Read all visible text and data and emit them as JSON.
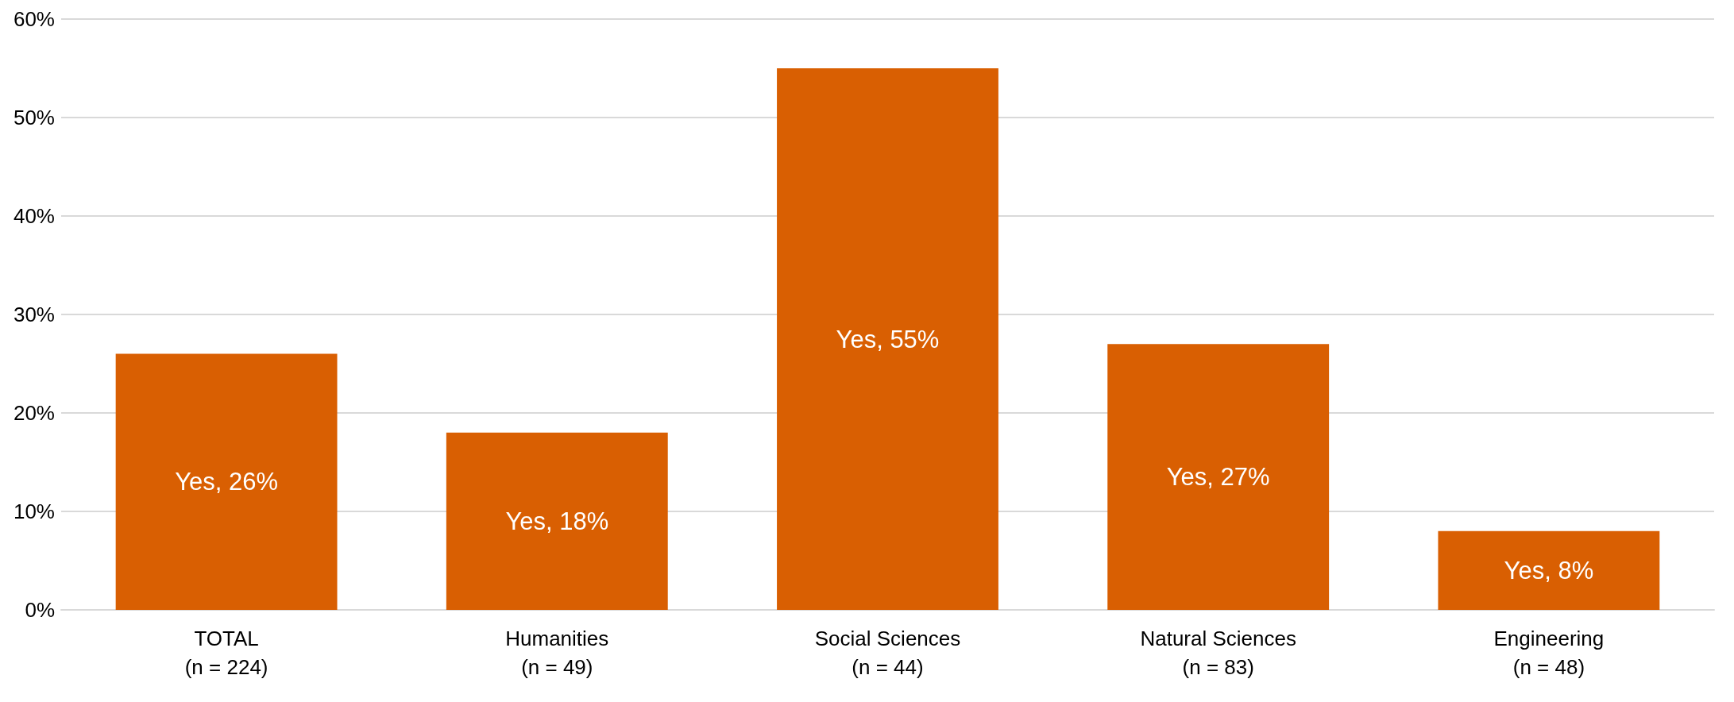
{
  "chart_data": {
    "type": "bar",
    "categories": [
      "TOTAL\n(n = 224)",
      "Humanities\n(n = 49)",
      "Social Sciences\n(n = 44)",
      "Natural Sciences\n(n = 83)",
      "Engineering\n(n = 48)"
    ],
    "values": [
      26,
      18,
      55,
      27,
      8
    ],
    "value_labels": [
      "Yes, 26%",
      "Yes, 18%",
      "Yes, 55%",
      "Yes, 27%",
      "Yes, 8%"
    ],
    "color": "#d95f02",
    "ylim": [
      0,
      60
    ],
    "yticks": [
      {
        "value": 0,
        "label": "0%"
      },
      {
        "value": 10,
        "label": "10%"
      },
      {
        "value": 20,
        "label": "20%"
      },
      {
        "value": 30,
        "label": "30%"
      },
      {
        "value": 40,
        "label": "40%"
      },
      {
        "value": 50,
        "label": "50%"
      },
      {
        "value": 60,
        "label": "60%"
      }
    ],
    "grid": "y"
  }
}
